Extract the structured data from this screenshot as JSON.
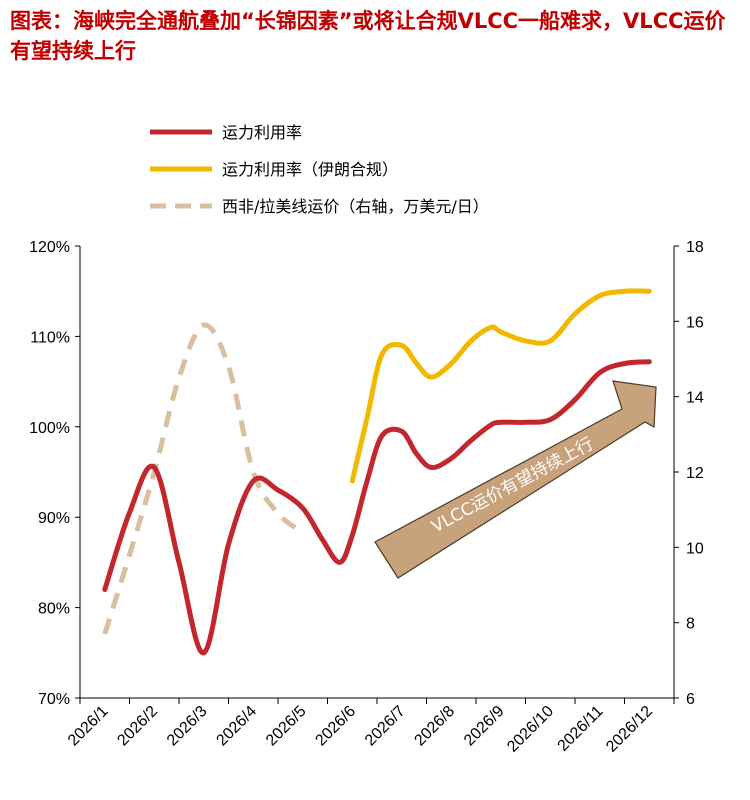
{
  "chart_data": {
    "type": "line",
    "title": "图表：海峡完全通航叠加“长锦因素”或将让合规VLCC一船难求，VLCC运价有望持续上行",
    "categories": [
      "2026/1",
      "2026/2",
      "2026/3",
      "2026/4",
      "2026/5",
      "2026/6",
      "2026/7",
      "2026/8",
      "2026/9",
      "2026/10",
      "2026/11",
      "2026/12"
    ],
    "y_left": {
      "ticks": [
        "70%",
        "80%",
        "90%",
        "100%",
        "110%",
        "120%"
      ],
      "range": [
        70,
        120
      ]
    },
    "y_right": {
      "ticks": [
        "6",
        "8",
        "10",
        "12",
        "14",
        "16",
        "18"
      ],
      "range": [
        6,
        18
      ]
    },
    "series": [
      {
        "name": "运力利用率",
        "axis": "left",
        "color": "#c1272d",
        "style": "solid",
        "points": [
          [
            1.0,
            82.0
          ],
          [
            1.5,
            90.5
          ],
          [
            2.0,
            95.5
          ],
          [
            2.5,
            85.0
          ],
          [
            3.0,
            75.0
          ],
          [
            3.5,
            87.0
          ],
          [
            4.0,
            94.0
          ],
          [
            4.5,
            93.0
          ],
          [
            5.0,
            91.0
          ],
          [
            5.4,
            87.5
          ],
          [
            5.75,
            85.0
          ],
          [
            6.0,
            88.0
          ],
          [
            6.3,
            94.0
          ],
          [
            6.6,
            99.0
          ],
          [
            7.0,
            99.5
          ],
          [
            7.3,
            97.0
          ],
          [
            7.6,
            95.5
          ],
          [
            8.0,
            96.5
          ],
          [
            8.4,
            98.5
          ],
          [
            8.8,
            100.2
          ],
          [
            9.0,
            100.5
          ],
          [
            9.5,
            100.5
          ],
          [
            10.0,
            100.8
          ],
          [
            10.5,
            103.0
          ],
          [
            11.0,
            106.0
          ],
          [
            11.5,
            107.0
          ],
          [
            12.0,
            107.2
          ]
        ]
      },
      {
        "name": "运力利用率（伊朗合规）",
        "axis": "left",
        "color": "#f2b800",
        "style": "solid",
        "points": [
          [
            6.0,
            94.0
          ],
          [
            6.3,
            101.0
          ],
          [
            6.6,
            108.0
          ],
          [
            7.0,
            109.0
          ],
          [
            7.3,
            107.0
          ],
          [
            7.6,
            105.5
          ],
          [
            8.0,
            107.0
          ],
          [
            8.4,
            109.5
          ],
          [
            8.8,
            111.0
          ],
          [
            9.0,
            110.5
          ],
          [
            9.5,
            109.5
          ],
          [
            10.0,
            109.5
          ],
          [
            10.5,
            112.5
          ],
          [
            11.0,
            114.5
          ],
          [
            11.5,
            115.0
          ],
          [
            12.0,
            115.0
          ]
        ]
      },
      {
        "name": "西非/拉美线运价（右轴，万美元/日）",
        "axis": "right",
        "color": "#d7bfa0",
        "style": "dashed",
        "points": [
          [
            1.0,
            7.7
          ],
          [
            1.5,
            9.8
          ],
          [
            2.0,
            12.0
          ],
          [
            2.5,
            14.5
          ],
          [
            3.0,
            15.9
          ],
          [
            3.5,
            14.8
          ],
          [
            4.0,
            12.0
          ],
          [
            4.5,
            10.9
          ],
          [
            5.0,
            10.4
          ]
        ]
      }
    ],
    "annotation": {
      "text": "VLCC运价有望持续上行",
      "fill": "#c8a27a"
    },
    "grid": false,
    "legend_position": "top-left"
  }
}
